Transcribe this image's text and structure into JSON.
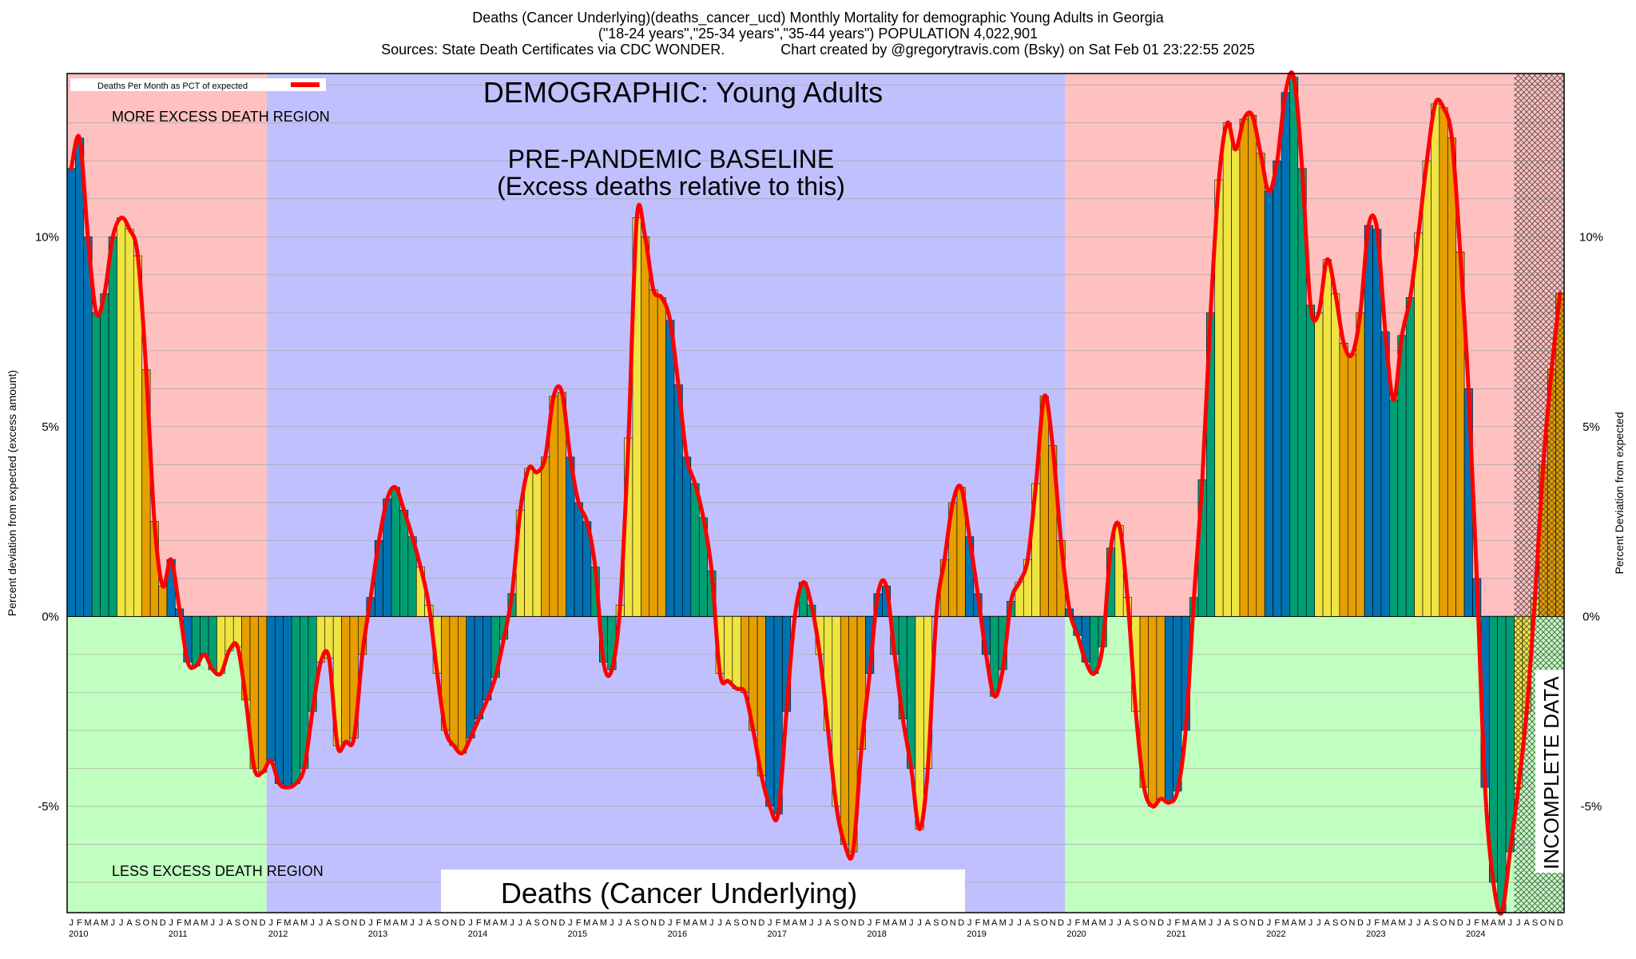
{
  "header": {
    "title_line1": "Deaths (Cancer Underlying)(deaths_cancer_ucd) Monthly Mortality for demographic Young Adults in Georgia",
    "title_line2": "(\"18-24 years\",\"25-34 years\",\"35-44 years\") POPULATION 4,022,901",
    "title_line3": "Sources: State Death Certificates via CDC WONDER.              Chart created by @gregorytravis.com (Bsky) on Sat Feb 01 23:22:55 2025"
  },
  "annotations": {
    "demographic": "DEMOGRAPHIC: Young Adults",
    "baseline_1": "PRE-PANDEMIC BASELINE",
    "baseline_2": "(Excess deaths relative to this)",
    "more_region": "MORE EXCESS DEATH REGION",
    "less_region": "LESS EXCESS DEATH REGION",
    "metric_box": "Deaths (Cancer Underlying)",
    "incomplete": "INCOMPLETE DATA"
  },
  "colors": {
    "more_region": "#ffc0c0",
    "less_region": "#c0ffc0",
    "baseline_region": "#c0c0ff",
    "line": "#ff0000",
    "bar_palette": [
      "#0072b2",
      "#009e73",
      "#f0e442",
      "#e69f00"
    ]
  },
  "chart_data": {
    "type": "bar",
    "title": "Deaths (Cancer Underlying)(deaths_cancer_ucd) Monthly Mortality for demographic Young Adults in Georgia",
    "ylabel": "Percent deviation from expected (excess amount)",
    "ylabel_right": "Percent Deviation from expected",
    "ylim": [
      -7.8,
      14.3
    ],
    "yticks": [
      -5,
      0,
      5,
      10
    ],
    "ytick_labels": [
      "-5%",
      "0%",
      "5%",
      "10%"
    ],
    "month_letters": [
      "J",
      "F",
      "M",
      "A",
      "M",
      "J",
      "J",
      "A",
      "S",
      "O",
      "N",
      "D"
    ],
    "years": [
      "2010",
      "2011",
      "2012",
      "2013",
      "2014",
      "2015",
      "2016",
      "2017",
      "2018",
      "2019",
      "2020",
      "2021",
      "2022",
      "2023",
      "2024"
    ],
    "legend": {
      "label": "Deaths Per Month as PCT of expected",
      "position": "top-left"
    },
    "baseline_years": [
      2012,
      2019
    ],
    "incomplete_from": "2024-07",
    "series": [
      {
        "name": "Deaths Per Month as PCT of expected",
        "values": [
          11.8,
          12.6,
          10.0,
          8.0,
          8.5,
          10.0,
          10.5,
          10.2,
          9.5,
          6.5,
          2.5,
          0.8,
          1.5,
          0.2,
          -1.2,
          -1.3,
          -1.0,
          -1.4,
          -1.5,
          -0.9,
          -0.8,
          -2.2,
          -4.0,
          -4.1,
          -3.8,
          -4.4,
          -4.5,
          -4.4,
          -4.0,
          -2.5,
          -1.2,
          -1.1,
          -3.4,
          -3.3,
          -3.2,
          -1.0,
          0.5,
          2.0,
          3.1,
          3.4,
          2.8,
          2.1,
          1.3,
          0.3,
          -1.5,
          -3.0,
          -3.4,
          -3.6,
          -3.2,
          -2.7,
          -2.2,
          -1.6,
          -0.6,
          0.6,
          2.8,
          3.9,
          3.8,
          4.2,
          5.8,
          5.9,
          4.2,
          3.0,
          2.5,
          1.3,
          -1.2,
          -1.4,
          0.3,
          4.7,
          10.5,
          10.0,
          8.6,
          8.4,
          7.8,
          6.1,
          4.2,
          3.5,
          2.6,
          1.2,
          -1.5,
          -1.7,
          -1.9,
          -2.0,
          -3.0,
          -4.2,
          -5.0,
          -5.2,
          -2.5,
          0.0,
          0.9,
          0.3,
          -1.0,
          -3.0,
          -5.0,
          -6.0,
          -6.2,
          -3.5,
          -1.5,
          0.6,
          0.8,
          -1.0,
          -2.7,
          -4.0,
          -5.6,
          -4.0,
          0.0,
          1.5,
          3.0,
          3.4,
          2.1,
          0.6,
          -1.0,
          -2.1,
          -1.4,
          0.4,
          0.9,
          1.5,
          3.5,
          5.8,
          4.5,
          2.0,
          0.2,
          -0.5,
          -1.2,
          -1.5,
          -0.8,
          1.8,
          2.4,
          0.5,
          -2.5,
          -4.5,
          -5.0,
          -4.8,
          -4.9,
          -4.6,
          -3.0,
          0.5,
          3.6,
          8.0,
          11.5,
          13.0,
          12.3,
          13.1,
          13.2,
          12.2,
          11.2,
          12.0,
          13.8,
          14.2,
          11.8,
          8.2,
          8.0,
          9.4,
          8.5,
          7.2,
          6.9,
          8.0,
          10.3,
          10.2,
          7.5,
          5.7,
          7.4,
          8.4,
          10.1,
          12.0,
          13.5,
          13.4,
          12.6,
          9.6,
          6.0,
          1.0,
          -4.5,
          -7.0,
          -7.8,
          -6.2,
          -4.5,
          -2.5,
          0.5,
          4.0,
          6.5,
          8.5
        ]
      }
    ]
  }
}
